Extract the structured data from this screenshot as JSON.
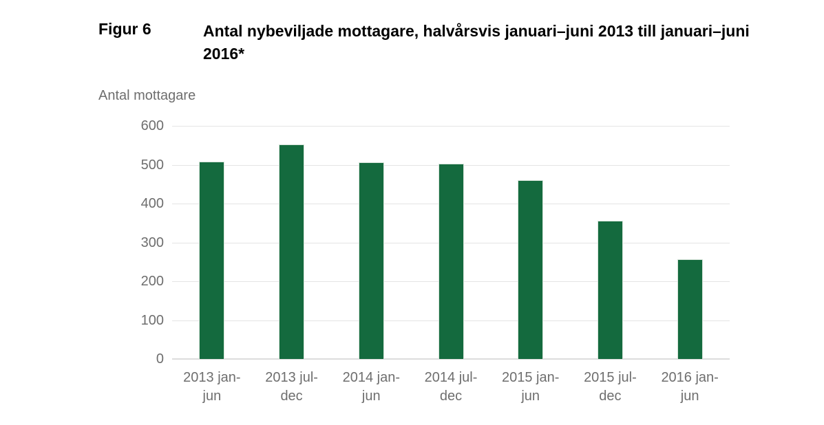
{
  "figure": {
    "label": "Figur 6",
    "title": "Antal nybeviljade mottagare, halvårsvis januari–juni 2013 till januari–juni 2016*"
  },
  "colors": {
    "bar": "#146a3e",
    "bar_edge": "#d7e4da",
    "axis_text": "#6e6e6e",
    "gridline": "#e4e4e4",
    "baseline": "#dcdcdc",
    "title_text": "#000000"
  },
  "chart_data": {
    "type": "bar",
    "title": "Antal nybeviljade mottagare, halvårsvis januari–juni 2013 till januari–juni 2016*",
    "xlabel": "",
    "ylabel": "Antal mottagare",
    "ylim": [
      0,
      600
    ],
    "yticks": [
      0,
      100,
      200,
      300,
      400,
      500,
      600
    ],
    "grid": "horizontal",
    "legend_position": "none",
    "categories": [
      "2013 jan-jun",
      "2013 jul-dec",
      "2014 jan-jun",
      "2014 jul-dec",
      "2015 jan-jun",
      "2015 jul-dec",
      "2016 jan-jun"
    ],
    "category_lines": [
      {
        "line1": "2013 jan-",
        "line2": "jun"
      },
      {
        "line1": "2013 jul-",
        "line2": "dec"
      },
      {
        "line1": "2014 jan-",
        "line2": "jun"
      },
      {
        "line1": "2014 jul-",
        "line2": "dec"
      },
      {
        "line1": "2015 jan-",
        "line2": "jun"
      },
      {
        "line1": "2015 jul-",
        "line2": "dec"
      },
      {
        "line1": "2016 jan-",
        "line2": "jun"
      }
    ],
    "values": [
      508,
      552,
      506,
      502,
      461,
      356,
      257
    ]
  }
}
